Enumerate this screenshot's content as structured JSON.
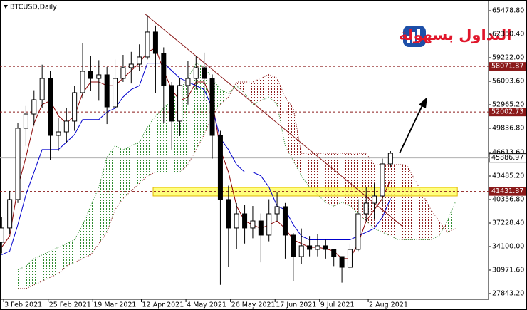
{
  "chart_data": {
    "type": "candlestick",
    "title": "BTCUSD,Daily",
    "logo_text": "التداول بسهولة",
    "xlim": [
      1.2,
      242.4
    ],
    "ylim": [
      27083,
      66901
    ],
    "xticks": [
      {
        "value": 3,
        "label": "3 Feb 2021"
      },
      {
        "value": 25,
        "label": "25 Feb 2021"
      },
      {
        "value": 47,
        "label": "19 Mar 2021"
      },
      {
        "value": 71,
        "label": "12 Apr 2021"
      },
      {
        "value": 93,
        "label": "4 May 2021"
      },
      {
        "value": 115,
        "label": "26 May 2021"
      },
      {
        "value": 137,
        "label": "17 Jun 2021"
      },
      {
        "value": 159,
        "label": "9 Jul 2021"
      },
      {
        "value": 183,
        "label": "2 Aug 2021"
      }
    ],
    "yticks": [
      {
        "value": 65478.8,
        "label": "65478.80"
      },
      {
        "value": 62350.4,
        "label": "62350.40"
      },
      {
        "value": 59222,
        "label": "59222.00"
      },
      {
        "value": 56093.6,
        "label": "56093.60"
      },
      {
        "value": 52965.2,
        "label": "52965.20"
      },
      {
        "value": 49836.8,
        "label": "49836.80"
      },
      {
        "value": 46613.6,
        "label": "46613.60"
      },
      {
        "value": 43485.2,
        "label": "43485.20"
      },
      {
        "value": 40356.8,
        "label": "40356.80"
      },
      {
        "value": 37228.4,
        "label": "37228.40"
      },
      {
        "value": 34100,
        "label": "34100.00"
      },
      {
        "value": 30971.6,
        "label": "30971.60"
      },
      {
        "value": 27843.2,
        "label": "27843.20"
      }
    ],
    "candles": {
      "color": "#000000",
      "x": [
        2,
        6,
        10,
        14,
        18,
        22,
        26,
        30,
        34,
        38,
        42,
        46,
        50,
        54,
        58,
        62,
        66,
        70,
        74,
        78,
        82,
        86,
        90,
        94,
        98,
        102,
        106,
        110,
        114,
        118,
        122,
        126,
        130,
        134,
        138,
        142,
        146,
        150,
        154,
        158,
        162,
        166,
        170,
        174,
        178,
        182,
        186,
        190,
        194
      ],
      "open": [
        34670,
        36570,
        40360,
        49840,
        51730,
        53630,
        56470,
        48890,
        49360,
        50790,
        54580,
        57420,
        56470,
        56950,
        52680,
        56470,
        57900,
        58370,
        59320,
        62640,
        59790,
        55530,
        50790,
        55530,
        56470,
        57900,
        56470,
        48890,
        40360,
        36570,
        38460,
        36570,
        37510,
        35620,
        38460,
        39410,
        35620,
        32770,
        34200,
        33720,
        34200,
        33720,
        32770,
        31350,
        33720,
        38460,
        39880,
        40830,
        45100
      ],
      "high": [
        38000,
        41500,
        50500,
        52800,
        54900,
        58300,
        57500,
        51200,
        52500,
        55500,
        61200,
        59500,
        58900,
        58000,
        59000,
        59600,
        60000,
        61000,
        64900,
        63500,
        60600,
        56000,
        56500,
        58800,
        59500,
        59900,
        57000,
        49500,
        42200,
        39900,
        39600,
        39500,
        38500,
        40400,
        41300,
        39900,
        35900,
        36500,
        35500,
        35800,
        35000,
        33800,
        32800,
        34500,
        40400,
        42000,
        42500,
        45800,
        46800
      ],
      "low": [
        33200,
        35800,
        39900,
        47500,
        50200,
        52500,
        45600,
        46800,
        47900,
        49500,
        53800,
        54800,
        53500,
        50400,
        51800,
        56000,
        55800,
        57500,
        59000,
        54500,
        50500,
        47000,
        48800,
        53000,
        55000,
        53500,
        45800,
        29000,
        31400,
        33800,
        34500,
        35200,
        32000,
        34800,
        37500,
        32500,
        29500,
        31800,
        32800,
        32800,
        32500,
        31500,
        29300,
        31000,
        33500,
        37500,
        37700,
        39500,
        44600
      ],
      "close": [
        36570,
        40360,
        49840,
        51730,
        53630,
        56470,
        48890,
        49360,
        50790,
        54580,
        57420,
        56470,
        56950,
        52680,
        56470,
        57900,
        58370,
        59320,
        62640,
        59790,
        55530,
        50790,
        55530,
        56470,
        57900,
        56470,
        48890,
        40360,
        36570,
        38460,
        36570,
        37510,
        35620,
        38460,
        39410,
        35620,
        32770,
        34200,
        33720,
        34200,
        33720,
        32770,
        31350,
        33720,
        38460,
        39880,
        40830,
        45100,
        46520
      ]
    },
    "lines": [
      {
        "color": "#8b0000",
        "values": [
          34000,
          35500,
          42000,
          46000,
          50500,
          53000,
          53500,
          51500,
          50500,
          51500,
          54500,
          56000,
          56000,
          55500,
          55500,
          56500,
          57500,
          58500,
          60000,
          60500,
          57500,
          55000,
          53500,
          54000,
          56000,
          56000,
          53500,
          47000,
          44000,
          39500,
          37500,
          37000,
          36500,
          37000,
          37500,
          36500,
          35000,
          34500,
          34000,
          34000,
          33800,
          33500,
          32500,
          32500,
          34500,
          37500,
          39000,
          40500,
          43000
        ]
      },
      {
        "color": "#0000cd",
        "values": [
          33000,
          33500,
          37000,
          41000,
          44000,
          47000,
          47000,
          47000,
          48000,
          49000,
          51000,
          51000,
          51000,
          52000,
          52500,
          54000,
          55000,
          55500,
          58500,
          58500,
          58500,
          57500,
          56500,
          56000,
          55500,
          55000,
          52500,
          48500,
          47000,
          45000,
          44000,
          44000,
          43500,
          42000,
          39500,
          39000,
          37000,
          35500,
          35000,
          35000,
          35000,
          35000,
          35000,
          35000,
          35500,
          36000,
          36500,
          38000,
          40500
        ]
      }
    ],
    "cloud": {
      "x": [
        2,
        6,
        10,
        14,
        18,
        22,
        26,
        30,
        34,
        38,
        42,
        46,
        50,
        54,
        58,
        62,
        66,
        70,
        74,
        78,
        82,
        86,
        90,
        94,
        98,
        102,
        106,
        110,
        114,
        118,
        122,
        126,
        130,
        134,
        138,
        142,
        146,
        150,
        154,
        158,
        162,
        166,
        170,
        174,
        178,
        182,
        186,
        190,
        194,
        198,
        202,
        206,
        210,
        214,
        218,
        222,
        226
      ],
      "span_a": [
        null,
        null,
        31000,
        31500,
        32500,
        33000,
        33500,
        34000,
        34500,
        35000,
        37000,
        39500,
        42000,
        46000,
        47500,
        47000,
        47500,
        48000,
        50000,
        51500,
        52500,
        53500,
        55000,
        56500,
        58500,
        58000,
        56500,
        55000,
        54500,
        55500,
        54500,
        53000,
        53500,
        54000,
        53000,
        47500,
        45500,
        43500,
        42000,
        41000,
        40000,
        39500,
        40000,
        39500,
        38500,
        37500,
        36500,
        36000,
        35500,
        35000,
        35000,
        35000,
        35000,
        35000,
        35500,
        37500,
        40000
      ],
      "span_b": [
        null,
        null,
        28500,
        28500,
        29000,
        29500,
        30000,
        30500,
        31500,
        32000,
        32500,
        33000,
        34500,
        36000,
        39000,
        40500,
        41500,
        42500,
        43500,
        44000,
        44000,
        44000,
        44000,
        45000,
        47000,
        49000,
        51500,
        53000,
        54000,
        56000,
        56000,
        56000,
        56500,
        57000,
        56500,
        54000,
        52500,
        46500,
        46500,
        46500,
        46500,
        46500,
        46500,
        46500,
        46500,
        46500,
        45000,
        45000,
        45000,
        45000,
        45000,
        43000,
        41000,
        39000,
        37500,
        36000,
        36500
      ],
      "up_color": "#2e8b2e",
      "down_color": "#8b1a1a"
    },
    "trendline": {
      "x": [
        73,
        200
      ],
      "y": [
        65000,
        36760
      ],
      "color": "#8b1a1a"
    },
    "zone": {
      "x": [
        76.8,
        227
      ],
      "y": [
        41969,
        40832
      ],
      "color": "#ffff66"
    },
    "levels": [
      58071.87,
      52002.73,
      41431.87
    ],
    "level_color": "#8b1a1a",
    "current_price": 45886.97
  }
}
